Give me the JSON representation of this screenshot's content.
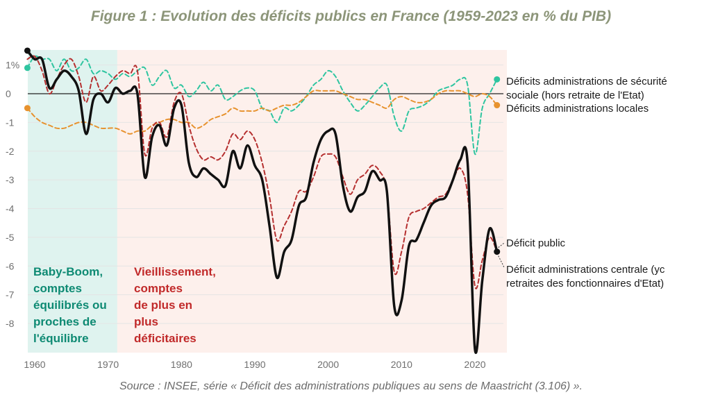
{
  "title": "Figure 1 : Evolution des déficits publics en France (1959-2023 en % du PIB)",
  "source": "Source : INSEE, série « Déficit des administrations publiques au sens de Maastricht (3.106) ».",
  "chart_data": {
    "type": "line",
    "title": "Figure 1 : Evolution des déficits publics en France (1959-2023 en % du PIB)",
    "xlabel": "",
    "ylabel": "",
    "xlim": [
      1958.5,
      2024
    ],
    "ylim": [
      -8.9,
      1.6
    ],
    "x_ticks": [
      1960,
      1970,
      1980,
      1990,
      2000,
      2010,
      2020
    ],
    "y_ticks": [
      {
        "v": 1,
        "label": "1%"
      },
      {
        "v": 0,
        "label": "0"
      },
      {
        "v": -1,
        "label": "-1"
      },
      {
        "v": -2,
        "label": "-2"
      },
      {
        "v": -3,
        "label": "-3"
      },
      {
        "v": -4,
        "label": "-4"
      },
      {
        "v": -5,
        "label": "-5"
      },
      {
        "v": -6,
        "label": "-6"
      },
      {
        "v": -7,
        "label": "-7"
      },
      {
        "v": -8,
        "label": "-8"
      }
    ],
    "grid": true,
    "regions": [
      {
        "label": [
          "Baby-Boom,",
          "comptes",
          "équilibrés ou",
          "proches de",
          "l'équilibre"
        ],
        "from": 1959,
        "to": 1972,
        "color": "#dff3ef",
        "text_color": "#0e8a73"
      },
      {
        "label": [
          "Vieillissement,",
          "comptes",
          "de plus en",
          "plus",
          "déficitaires"
        ],
        "from": 1972,
        "to": 2024,
        "color": "#fdf0ec",
        "text_color": "#c12a2a"
      }
    ],
    "series": [
      {
        "name": "Déficits administrations de sécurité sociale (hors retraite de l'Etat)",
        "label_lines": [
          "Déficits administrations de sécurité",
          "sociale (hors retraite de l'Etat)"
        ],
        "color": "#2ec5a0",
        "style": "dashed",
        "width": 2,
        "x": [
          1959,
          1960,
          1961,
          1962,
          1963,
          1964,
          1965,
          1966,
          1967,
          1968,
          1969,
          1970,
          1971,
          1972,
          1973,
          1974,
          1975,
          1976,
          1977,
          1978,
          1979,
          1980,
          1981,
          1982,
          1983,
          1984,
          1985,
          1986,
          1987,
          1988,
          1989,
          1990,
          1991,
          1992,
          1993,
          1994,
          1995,
          1996,
          1997,
          1998,
          1999,
          2000,
          2001,
          2002,
          2003,
          2004,
          2005,
          2006,
          2007,
          2008,
          2009,
          2010,
          2011,
          2012,
          2013,
          2014,
          2015,
          2016,
          2017,
          2018,
          2019,
          2020,
          2021,
          2022,
          2023
        ],
        "y": [
          0.9,
          1.3,
          1.2,
          1.2,
          0.8,
          1.2,
          0.8,
          0.9,
          1.2,
          0.7,
          0.8,
          0.7,
          0.5,
          0.7,
          0.6,
          0.8,
          0.9,
          0.3,
          0.6,
          0.8,
          0.2,
          0.3,
          -0.1,
          0.1,
          0.4,
          0.1,
          0.3,
          -0.2,
          -0.1,
          0.1,
          0.2,
          0.1,
          -0.5,
          -0.6,
          -1.0,
          -0.5,
          -0.6,
          -0.4,
          -0.1,
          0.3,
          0.5,
          0.8,
          0.6,
          0.1,
          -0.3,
          -0.6,
          -0.4,
          -0.1,
          0.2,
          0.3,
          -0.8,
          -1.3,
          -0.6,
          -0.5,
          -0.4,
          -0.2,
          0.1,
          0.2,
          0.3,
          0.5,
          0.3,
          -2.1,
          -0.5,
          0.0,
          0.5
        ]
      },
      {
        "name": "Déficits administrations locales",
        "label_lines": [
          "Déficits administrations locales"
        ],
        "color": "#e7922e",
        "style": "dashed",
        "width": 2,
        "x": [
          1959,
          1960,
          1961,
          1962,
          1963,
          1964,
          1965,
          1966,
          1967,
          1968,
          1969,
          1970,
          1971,
          1972,
          1973,
          1974,
          1975,
          1976,
          1977,
          1978,
          1979,
          1980,
          1981,
          1982,
          1983,
          1984,
          1985,
          1986,
          1987,
          1988,
          1989,
          1990,
          1991,
          1992,
          1993,
          1994,
          1995,
          1996,
          1997,
          1998,
          1999,
          2000,
          2001,
          2002,
          2003,
          2004,
          2005,
          2006,
          2007,
          2008,
          2009,
          2010,
          2011,
          2012,
          2013,
          2014,
          2015,
          2016,
          2017,
          2018,
          2019,
          2020,
          2021,
          2022,
          2023
        ],
        "y": [
          -0.5,
          -0.8,
          -1.0,
          -1.1,
          -1.2,
          -1.2,
          -1.1,
          -1.0,
          -1.0,
          -1.1,
          -1.2,
          -1.2,
          -1.2,
          -1.3,
          -1.4,
          -1.3,
          -1.3,
          -1.1,
          -1.0,
          -0.9,
          -0.9,
          -1.0,
          -1.0,
          -1.2,
          -1.1,
          -0.9,
          -0.8,
          -0.7,
          -0.5,
          -0.6,
          -0.6,
          -0.6,
          -0.5,
          -0.6,
          -0.5,
          -0.4,
          -0.4,
          -0.3,
          -0.1,
          0.1,
          0.1,
          0.1,
          0.1,
          0.0,
          -0.1,
          -0.2,
          -0.2,
          -0.3,
          -0.4,
          -0.5,
          -0.2,
          -0.1,
          -0.2,
          -0.3,
          -0.3,
          -0.2,
          0.0,
          0.1,
          0.1,
          0.1,
          0.0,
          -0.1,
          0.0,
          -0.1,
          -0.4
        ]
      },
      {
        "name": "Déficit administrations centrale (yc retraites des fonctionnaires d'Etat)",
        "label_lines": [
          "Déficit administrations centrale (yc",
          "retraites des fonctionnaires d'Etat)"
        ],
        "color": "#b52f2f",
        "style": "dashed",
        "width": 2,
        "x": [
          1959,
          1960,
          1961,
          1962,
          1963,
          1964,
          1965,
          1966,
          1967,
          1968,
          1969,
          1970,
          1971,
          1972,
          1973,
          1974,
          1975,
          1976,
          1977,
          1978,
          1979,
          1980,
          1981,
          1982,
          1983,
          1984,
          1985,
          1986,
          1987,
          1988,
          1989,
          1990,
          1991,
          1992,
          1993,
          1994,
          1995,
          1996,
          1997,
          1998,
          1999,
          2000,
          2001,
          2002,
          2003,
          2004,
          2005,
          2006,
          2007,
          2008,
          2009,
          2010,
          2011,
          2012,
          2013,
          2014,
          2015,
          2016,
          2017,
          2018,
          2019,
          2020,
          2021,
          2022,
          2023
        ],
        "y": [
          1.2,
          1.3,
          0.8,
          0.0,
          0.5,
          1.0,
          1.2,
          0.6,
          -0.3,
          0.6,
          0.1,
          0.3,
          0.6,
          0.8,
          0.7,
          0.8,
          -2.1,
          -1.2,
          -1.0,
          -1.5,
          -0.3,
          0.0,
          -1.1,
          -1.9,
          -2.3,
          -2.2,
          -2.3,
          -2.0,
          -1.4,
          -1.6,
          -1.3,
          -1.6,
          -2.4,
          -3.6,
          -5.1,
          -4.6,
          -4.1,
          -3.4,
          -3.4,
          -2.9,
          -2.2,
          -2.1,
          -2.2,
          -2.9,
          -3.5,
          -3.0,
          -2.8,
          -2.5,
          -2.7,
          -3.4,
          -6.2,
          -5.5,
          -4.3,
          -4.1,
          -4.0,
          -3.8,
          -3.6,
          -3.5,
          -3.0,
          -2.6,
          -3.5,
          -6.7,
          -5.8,
          -5.0,
          -5.5
        ]
      },
      {
        "name": "Déficit public",
        "label_lines": [
          "Déficit public"
        ],
        "color": "#111111",
        "style": "solid",
        "width": 3.5,
        "x": [
          1959,
          1960,
          1961,
          1962,
          1963,
          1964,
          1965,
          1966,
          1967,
          1968,
          1969,
          1970,
          1971,
          1972,
          1973,
          1974,
          1975,
          1976,
          1977,
          1978,
          1979,
          1980,
          1981,
          1982,
          1983,
          1984,
          1985,
          1986,
          1987,
          1988,
          1989,
          1990,
          1991,
          1992,
          1993,
          1994,
          1995,
          1996,
          1997,
          1998,
          1999,
          2000,
          2001,
          2002,
          2003,
          2004,
          2005,
          2006,
          2007,
          2008,
          2009,
          2010,
          2011,
          2012,
          2013,
          2014,
          2015,
          2016,
          2017,
          2018,
          2019,
          2020,
          2021,
          2022,
          2023
        ],
        "y": [
          1.5,
          1.2,
          1.2,
          0.2,
          0.5,
          0.8,
          0.6,
          0.1,
          -1.4,
          -0.2,
          0.0,
          -0.3,
          0.2,
          0.0,
          0.1,
          0.0,
          -2.9,
          -1.5,
          -1.1,
          -1.8,
          -0.5,
          -0.4,
          -2.4,
          -2.9,
          -2.6,
          -2.8,
          -3.0,
          -3.2,
          -2.0,
          -2.6,
          -1.8,
          -2.5,
          -3.0,
          -4.6,
          -6.4,
          -5.5,
          -5.1,
          -3.9,
          -3.6,
          -2.4,
          -1.6,
          -1.3,
          -1.4,
          -3.2,
          -4.1,
          -3.6,
          -3.4,
          -2.7,
          -3.0,
          -3.4,
          -7.4,
          -7.2,
          -5.3,
          -5.1,
          -4.5,
          -3.9,
          -3.7,
          -3.6,
          -3.0,
          -2.3,
          -2.4,
          -8.9,
          -6.5,
          -4.7,
          -5.5
        ]
      }
    ]
  }
}
